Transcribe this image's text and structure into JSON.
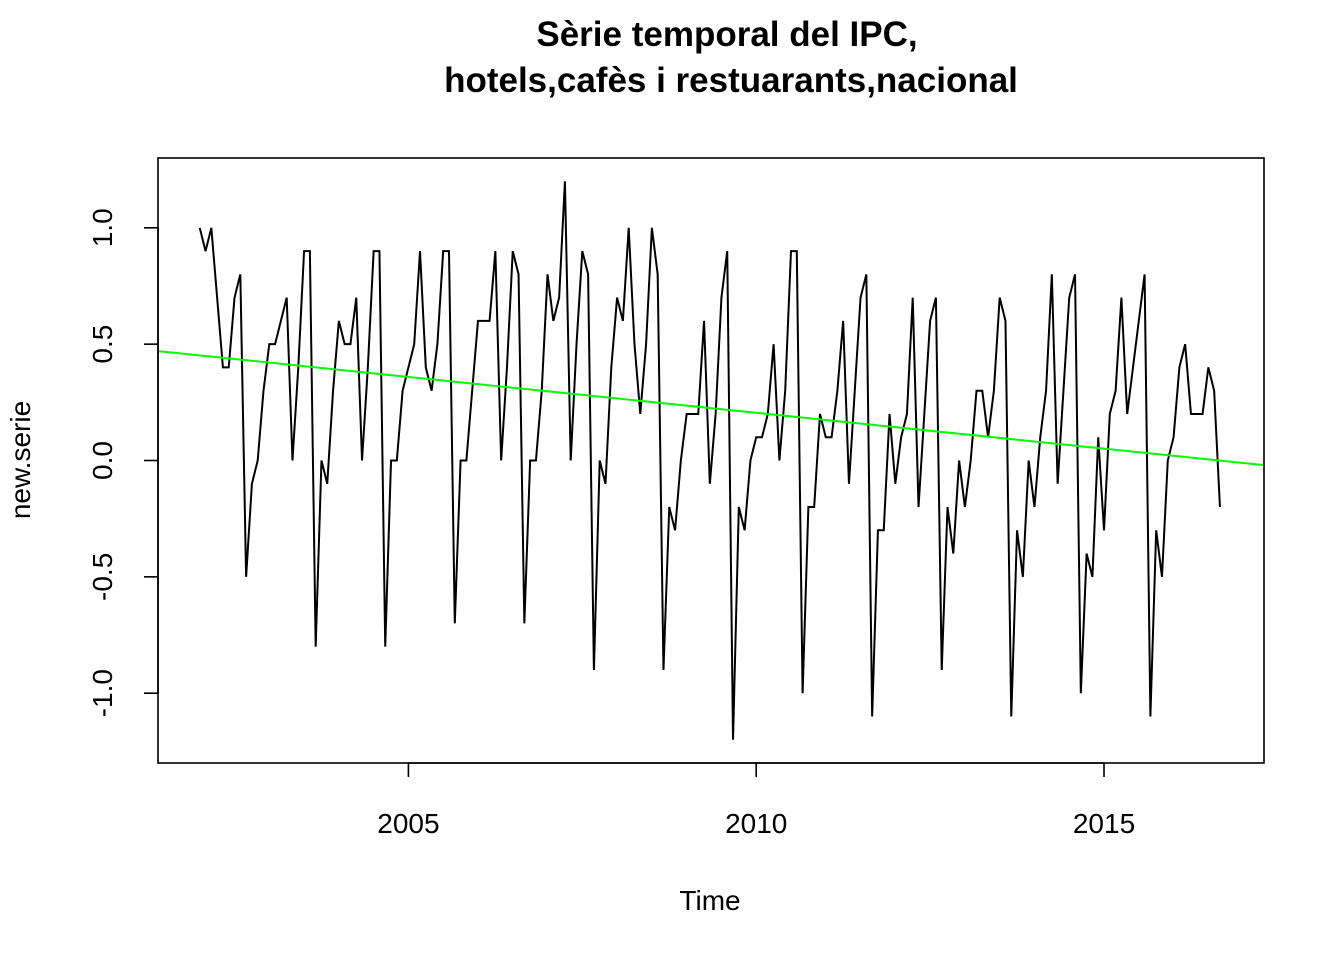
{
  "chart_data": {
    "type": "line",
    "title_lines": [
      "Sèrie temporal del IPC,",
      "hotels,cafès i restuarants,nacional"
    ],
    "xlabel": "Time",
    "ylabel": "new.serie",
    "x_start": 2002.0,
    "x_step": 0.0833333,
    "xlim": [
      2001.4,
      2017.3
    ],
    "ylim": [
      -1.3,
      1.3
    ],
    "x_ticks": [
      2005,
      2010,
      2015
    ],
    "x_tick_labels": [
      "2005",
      "2010",
      "2015"
    ],
    "y_ticks": [
      -1.0,
      -0.5,
      0.0,
      0.5,
      1.0
    ],
    "y_tick_labels": [
      "-1.0",
      "-0.5",
      "0.0",
      "0.5",
      "1.0"
    ],
    "series": [
      {
        "color": "#000000",
        "values": [
          1.0,
          0.9,
          1.0,
          0.7,
          0.4,
          0.4,
          0.7,
          0.8,
          -0.5,
          -0.1,
          0.0,
          0.3,
          0.5,
          0.5,
          0.6,
          0.7,
          0.0,
          0.4,
          0.9,
          0.9,
          -0.8,
          0.0,
          -0.1,
          0.3,
          0.6,
          0.5,
          0.5,
          0.7,
          0.0,
          0.4,
          0.9,
          0.9,
          -0.8,
          0.0,
          0.0,
          0.3,
          0.4,
          0.5,
          0.9,
          0.4,
          0.3,
          0.5,
          0.9,
          0.9,
          -0.7,
          0.0,
          0.0,
          0.3,
          0.6,
          0.6,
          0.6,
          0.9,
          0.0,
          0.4,
          0.9,
          0.8,
          -0.7,
          0.0,
          0.0,
          0.3,
          0.8,
          0.6,
          0.7,
          1.2,
          0.0,
          0.5,
          0.9,
          0.8,
          -0.9,
          0.0,
          -0.1,
          0.4,
          0.7,
          0.6,
          1.0,
          0.5,
          0.2,
          0.5,
          1.0,
          0.8,
          -0.9,
          -0.2,
          -0.3,
          0.0,
          0.2,
          0.2,
          0.2,
          0.6,
          -0.1,
          0.2,
          0.7,
          0.9,
          -1.2,
          -0.2,
          -0.3,
          0.0,
          0.1,
          0.1,
          0.2,
          0.5,
          0.0,
          0.3,
          0.9,
          0.9,
          -1.0,
          -0.2,
          -0.2,
          0.2,
          0.1,
          0.1,
          0.3,
          0.6,
          -0.1,
          0.3,
          0.7,
          0.8,
          -1.1,
          -0.3,
          -0.3,
          0.2,
          -0.1,
          0.1,
          0.2,
          0.7,
          -0.2,
          0.2,
          0.6,
          0.7,
          -0.9,
          -0.2,
          -0.4,
          0.0,
          -0.2,
          0.0,
          0.3,
          0.3,
          0.1,
          0.3,
          0.7,
          0.6,
          -1.1,
          -0.3,
          -0.5,
          0.0,
          -0.2,
          0.1,
          0.3,
          0.8,
          -0.1,
          0.3,
          0.7,
          0.8,
          -1.0,
          -0.4,
          -0.5,
          0.1,
          -0.3,
          0.2,
          0.3,
          0.7,
          0.2,
          0.4,
          0.6,
          0.8,
          -1.1,
          -0.3,
          -0.5,
          0.0,
          0.1,
          0.4,
          0.5,
          0.2,
          0.2,
          0.2,
          0.4,
          0.3,
          -0.2
        ]
      },
      {
        "color": "#00ff00",
        "kind": "trend",
        "intercept_at_xlim0": 0.47,
        "value_at_xlim1": -0.02
      }
    ]
  }
}
